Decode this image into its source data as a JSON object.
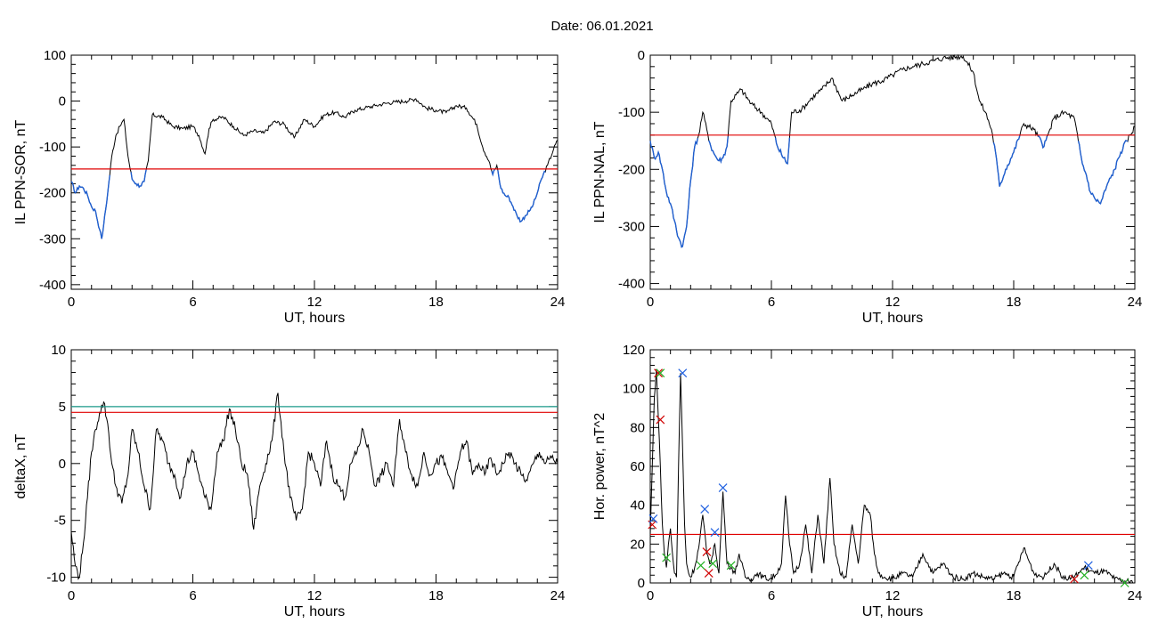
{
  "figure_title": "Date:  06.01.2021",
  "colors": {
    "trace": "#000000",
    "below_threshold": "#1f5fd0",
    "threshold_red": "#e00000",
    "threshold_teal": "#1a9a8a",
    "marker_red": "#d00000",
    "marker_blue": "#2060e0",
    "marker_green": "#20b020"
  },
  "chart_data": [
    {
      "id": "sor",
      "type": "line",
      "title": "",
      "xlabel": "UT, hours",
      "ylabel": "IL PPN-SOR, nT",
      "xlim": [
        0,
        24
      ],
      "ylim": [
        -410,
        100
      ],
      "xticks": [
        0,
        6,
        12,
        18,
        24
      ],
      "yticks": [
        -400,
        -300,
        -200,
        -100,
        0,
        100
      ],
      "threshold": -148,
      "series": [
        {
          "x": [
            0,
            0.2,
            0.4,
            0.6,
            0.8,
            1.0,
            1.2,
            1.4,
            1.5,
            1.6,
            1.8,
            2.0,
            2.2,
            2.4,
            2.6,
            2.8,
            3.0,
            3.2,
            3.4,
            3.6,
            3.8,
            4.0,
            4.5,
            5.0,
            5.5,
            6.0,
            6.3,
            6.6,
            6.8,
            7.0,
            7.5,
            8.0,
            8.5,
            9.0,
            9.5,
            10.0,
            10.5,
            11.0,
            11.5,
            12.0,
            12.5,
            13.0,
            13.5,
            14.0,
            14.5,
            15.0,
            15.5,
            16.0,
            16.5,
            17.0,
            17.5,
            18.0,
            18.5,
            19.0,
            19.5,
            20.0,
            20.3,
            20.6,
            20.8,
            21.0,
            21.2,
            21.4,
            21.6,
            21.8,
            22.0,
            22.2,
            22.4,
            22.6,
            22.8,
            23.0,
            23.2,
            23.5,
            23.8,
            24.0
          ],
          "y": [
            -175,
            -200,
            -185,
            -190,
            -205,
            -230,
            -240,
            -280,
            -300,
            -270,
            -200,
            -120,
            -75,
            -55,
            -40,
            -120,
            -170,
            -180,
            -185,
            -175,
            -130,
            -30,
            -35,
            -55,
            -60,
            -55,
            -75,
            -115,
            -60,
            -40,
            -35,
            -55,
            -75,
            -65,
            -70,
            -45,
            -50,
            -80,
            -40,
            -55,
            -30,
            -25,
            -35,
            -20,
            -15,
            -10,
            -5,
            -2,
            0,
            5,
            -15,
            -20,
            -25,
            -10,
            -15,
            -50,
            -100,
            -130,
            -160,
            -140,
            -190,
            -205,
            -210,
            -230,
            -250,
            -262,
            -250,
            -240,
            -225,
            -200,
            -170,
            -140,
            -105,
            -85
          ]
        }
      ]
    },
    {
      "id": "nal",
      "type": "line",
      "title": "",
      "xlabel": "UT, hours",
      "ylabel": "IL PPN-NAL, nT",
      "xlim": [
        0,
        24
      ],
      "ylim": [
        -410,
        0
      ],
      "xticks": [
        0,
        6,
        12,
        18,
        24
      ],
      "yticks": [
        -400,
        -300,
        -200,
        -100,
        0
      ],
      "threshold": -140,
      "series": [
        {
          "x": [
            0,
            0.2,
            0.4,
            0.6,
            0.8,
            1.0,
            1.2,
            1.4,
            1.6,
            1.8,
            2.0,
            2.2,
            2.4,
            2.6,
            2.8,
            3.0,
            3.2,
            3.4,
            3.6,
            3.8,
            4.0,
            4.5,
            5.0,
            5.5,
            6.0,
            6.3,
            6.6,
            6.8,
            7.0,
            7.5,
            8.0,
            8.5,
            9.0,
            9.5,
            10.0,
            10.5,
            11.0,
            11.5,
            12.0,
            12.5,
            13.0,
            13.5,
            14.0,
            14.5,
            15.0,
            15.5,
            16.0,
            16.3,
            16.6,
            16.9,
            17.1,
            17.3,
            17.6,
            18.0,
            18.5,
            19.0,
            19.5,
            20.0,
            20.5,
            21.0,
            21.2,
            21.4,
            21.6,
            21.8,
            22.0,
            22.3,
            22.6,
            23.0,
            23.3,
            23.6,
            24.0
          ],
          "y": [
            -150,
            -180,
            -170,
            -200,
            -240,
            -260,
            -290,
            -320,
            -335,
            -300,
            -220,
            -160,
            -140,
            -100,
            -130,
            -160,
            -175,
            -185,
            -180,
            -160,
            -80,
            -60,
            -85,
            -100,
            -120,
            -160,
            -180,
            -190,
            -100,
            -95,
            -75,
            -60,
            -40,
            -80,
            -70,
            -60,
            -50,
            -45,
            -35,
            -25,
            -20,
            -15,
            -10,
            -5,
            -3,
            -2,
            -30,
            -80,
            -100,
            -130,
            -170,
            -230,
            -200,
            -170,
            -120,
            -130,
            -160,
            -110,
            -100,
            -110,
            -150,
            -190,
            -210,
            -240,
            -250,
            -260,
            -230,
            -200,
            -170,
            -150,
            -125
          ]
        }
      ]
    },
    {
      "id": "deltax",
      "type": "line",
      "title": "",
      "xlabel": "UT, hours",
      "ylabel": "deltaX, nT",
      "xlim": [
        0,
        24
      ],
      "ylim": [
        -10.5,
        10
      ],
      "xticks": [
        0,
        6,
        12,
        18,
        24
      ],
      "yticks": [
        -10,
        -5,
        0,
        5,
        10
      ],
      "threshold_red": 4.5,
      "threshold_teal": 5.0,
      "series": [
        {
          "x": [
            0,
            0.2,
            0.4,
            0.6,
            0.8,
            1.0,
            1.2,
            1.4,
            1.6,
            1.8,
            2.0,
            2.2,
            2.5,
            2.8,
            3.0,
            3.3,
            3.6,
            3.9,
            4.2,
            4.5,
            4.8,
            5.1,
            5.4,
            5.7,
            6.0,
            6.3,
            6.6,
            6.9,
            7.2,
            7.5,
            7.8,
            8.1,
            8.4,
            8.7,
            9.0,
            9.3,
            9.6,
            9.9,
            10.2,
            10.5,
            10.8,
            11.1,
            11.4,
            11.7,
            12.0,
            12.3,
            12.6,
            12.9,
            13.2,
            13.5,
            13.8,
            14.1,
            14.4,
            14.7,
            15.0,
            15.3,
            15.6,
            15.9,
            16.2,
            16.5,
            16.8,
            17.1,
            17.4,
            17.7,
            18.0,
            18.3,
            18.6,
            18.9,
            19.2,
            19.5,
            19.8,
            20.1,
            20.4,
            20.7,
            21.0,
            21.3,
            21.6,
            21.9,
            22.2,
            22.5,
            22.8,
            23.1,
            23.4,
            23.7,
            24.0
          ],
          "y": [
            -6,
            -9,
            -10,
            -7,
            -3,
            1,
            3,
            4.5,
            5.4,
            3.5,
            0,
            -2,
            -3.5,
            -1,
            3,
            1,
            -2,
            -4,
            3,
            2,
            0,
            -1,
            -3,
            0,
            1,
            -1,
            -3,
            -4,
            1,
            2,
            4.8,
            3,
            0,
            -1,
            -5.8,
            -2,
            0,
            2,
            6.2,
            1,
            -3,
            -5,
            -4,
            1,
            0,
            -2,
            2,
            -1,
            -2,
            -3,
            0,
            1,
            3,
            1,
            -2,
            -1,
            0,
            -2,
            3.9,
            1,
            -1,
            -2,
            1,
            -1,
            0,
            0.5,
            -1,
            -2,
            1,
            2,
            -1,
            0,
            -1,
            0.5,
            -1,
            0,
            1,
            0,
            -1,
            -1.5,
            0,
            1,
            0,
            0.5,
            0
          ]
        }
      ]
    },
    {
      "id": "power",
      "type": "line",
      "title": "",
      "xlabel": "UT, hours",
      "ylabel": "Hor. power, nT^2",
      "xlim": [
        0,
        24
      ],
      "ylim": [
        0,
        120
      ],
      "xticks": [
        0,
        6,
        12,
        18,
        24
      ],
      "yticks": [
        0,
        20,
        40,
        60,
        80,
        100,
        120
      ],
      "threshold": 25,
      "series": [
        {
          "x": [
            0,
            0.1,
            0.2,
            0.3,
            0.4,
            0.5,
            0.6,
            0.7,
            0.8,
            0.9,
            1.0,
            1.1,
            1.2,
            1.3,
            1.4,
            1.5,
            1.6,
            1.7,
            1.8,
            1.9,
            2.0,
            2.2,
            2.4,
            2.6,
            2.8,
            3.0,
            3.2,
            3.4,
            3.6,
            3.8,
            4.0,
            4.2,
            4.4,
            4.7,
            5.0,
            5.3,
            5.6,
            5.9,
            6.2,
            6.5,
            6.7,
            6.9,
            7.1,
            7.4,
            7.7,
            8.0,
            8.3,
            8.6,
            8.9,
            9.1,
            9.4,
            9.7,
            10.0,
            10.3,
            10.6,
            10.9,
            11.1,
            11.3,
            11.6,
            12.0,
            12.5,
            13.0,
            13.5,
            14.0,
            14.5,
            15.0,
            15.5,
            16.0,
            16.5,
            17.0,
            17.5,
            18.0,
            18.5,
            19.0,
            19.5,
            20.0,
            20.5,
            21.0,
            21.5,
            22.0,
            22.5,
            23.0,
            23.5,
            24.0
          ],
          "y": [
            25,
            60,
            95,
            110,
            85,
            60,
            30,
            15,
            8,
            20,
            28,
            15,
            5,
            3,
            60,
            108,
            70,
            30,
            10,
            5,
            3,
            8,
            18,
            35,
            15,
            10,
            20,
            5,
            47,
            10,
            8,
            5,
            15,
            3,
            2,
            5,
            3,
            2,
            4,
            10,
            45,
            20,
            5,
            10,
            30,
            5,
            35,
            10,
            54,
            20,
            5,
            3,
            30,
            10,
            40,
            35,
            15,
            5,
            3,
            2,
            5,
            3,
            15,
            5,
            10,
            3,
            2,
            5,
            3,
            2,
            5,
            3,
            18,
            5,
            3,
            10,
            2,
            3,
            8,
            5,
            6,
            2,
            1,
            0
          ]
        }
      ],
      "markers": [
        {
          "x": 0.1,
          "y": 30,
          "color": "red"
        },
        {
          "x": 0.15,
          "y": 33,
          "color": "blue"
        },
        {
          "x": 0.4,
          "y": 108,
          "color": "red"
        },
        {
          "x": 0.5,
          "y": 108,
          "color": "green"
        },
        {
          "x": 0.5,
          "y": 84,
          "color": "red"
        },
        {
          "x": 0.8,
          "y": 13,
          "color": "green"
        },
        {
          "x": 1.6,
          "y": 108,
          "color": "blue"
        },
        {
          "x": 2.5,
          "y": 9,
          "color": "green"
        },
        {
          "x": 2.7,
          "y": 38,
          "color": "blue"
        },
        {
          "x": 2.8,
          "y": 16,
          "color": "red"
        },
        {
          "x": 2.9,
          "y": 5,
          "color": "red"
        },
        {
          "x": 3.1,
          "y": 10,
          "color": "green"
        },
        {
          "x": 3.2,
          "y": 26,
          "color": "blue"
        },
        {
          "x": 3.6,
          "y": 49,
          "color": "blue"
        },
        {
          "x": 4.0,
          "y": 9,
          "color": "green"
        },
        {
          "x": 21.0,
          "y": 2,
          "color": "red"
        },
        {
          "x": 21.5,
          "y": 4,
          "color": "green"
        },
        {
          "x": 21.7,
          "y": 9,
          "color": "blue"
        },
        {
          "x": 23.5,
          "y": 0,
          "color": "green"
        }
      ]
    }
  ]
}
